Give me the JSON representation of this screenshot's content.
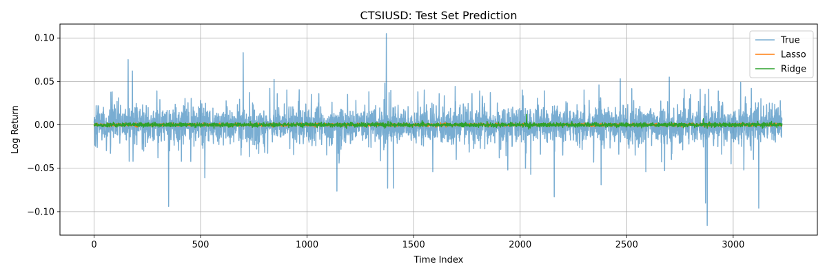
{
  "chart_data": {
    "type": "line",
    "title": "CTSIUSD: Test Set Prediction",
    "xlabel": "Time Index",
    "ylabel": "Log Return",
    "xlim": [
      -160,
      3395
    ],
    "ylim": [
      -0.127,
      0.116
    ],
    "xticks": [
      0,
      500,
      1000,
      1500,
      2000,
      2500,
      3000
    ],
    "xtick_labels": [
      "0",
      "500",
      "1000",
      "1500",
      "2000",
      "2500",
      "3000"
    ],
    "yticks": [
      -0.1,
      -0.05,
      0.0,
      0.05,
      0.1
    ],
    "ytick_labels": [
      "−0.10",
      "−0.05",
      "0.00",
      "0.05",
      "0.10"
    ],
    "grid": true,
    "legend_position": "top-right",
    "n_points": 3230,
    "series": [
      {
        "name": "True",
        "color": "#1f77b4",
        "opacity": 0.6,
        "noise_scale": 0.011,
        "spikes": [
          [
            10,
            0.022
          ],
          [
            15,
            -0.026
          ],
          [
            85,
            0.038
          ],
          [
            160,
            0.075
          ],
          [
            165,
            -0.042
          ],
          [
            180,
            0.062
          ],
          [
            183,
            -0.042
          ],
          [
            295,
            0.039
          ],
          [
            300,
            -0.038
          ],
          [
            350,
            -0.094
          ],
          [
            355,
            -0.03
          ],
          [
            410,
            -0.042
          ],
          [
            420,
            0.022
          ],
          [
            500,
            0.028
          ],
          [
            520,
            -0.061
          ],
          [
            690,
            -0.035
          ],
          [
            700,
            0.083
          ],
          [
            730,
            0.037
          ],
          [
            825,
            0.042
          ],
          [
            860,
            0.036
          ],
          [
            905,
            0.04
          ],
          [
            1020,
            0.035
          ],
          [
            1055,
            0.036
          ],
          [
            1150,
            -0.044
          ],
          [
            1190,
            0.035
          ],
          [
            1290,
            0.038
          ],
          [
            1365,
            0.048
          ],
          [
            1372,
            0.105
          ],
          [
            1378,
            -0.073
          ],
          [
            1385,
            0.037
          ],
          [
            1405,
            -0.073
          ],
          [
            1520,
            0.038
          ],
          [
            1550,
            0.04
          ],
          [
            1590,
            -0.054
          ],
          [
            1620,
            0.036
          ],
          [
            1700,
            -0.04
          ],
          [
            1810,
            0.039
          ],
          [
            1860,
            0.037
          ],
          [
            2010,
            0.04
          ],
          [
            2025,
            -0.05
          ],
          [
            2050,
            -0.057
          ],
          [
            2160,
            -0.083
          ],
          [
            2200,
            -0.035
          ],
          [
            2300,
            0.04
          ],
          [
            2345,
            -0.043
          ],
          [
            2370,
            0.046
          ],
          [
            2380,
            -0.069
          ],
          [
            2470,
            0.053
          ],
          [
            2540,
            -0.035
          ],
          [
            2590,
            -0.054
          ],
          [
            2700,
            0.055
          ],
          [
            2710,
            -0.04
          ],
          [
            2770,
            0.041
          ],
          [
            2845,
            0.041
          ],
          [
            2870,
            -0.09
          ],
          [
            2878,
            -0.116
          ],
          [
            2885,
            0.041
          ],
          [
            2930,
            0.039
          ],
          [
            2990,
            -0.045
          ],
          [
            3035,
            0.049
          ],
          [
            3050,
            -0.052
          ],
          [
            3085,
            0.042
          ],
          [
            3095,
            -0.04
          ],
          [
            3120,
            -0.096
          ],
          [
            3130,
            0.03
          ],
          [
            3170,
            0.025
          ],
          [
            3225,
            -0.013
          ]
        ]
      },
      {
        "name": "Lasso",
        "color": "#ff7f0e",
        "opacity": 1.0,
        "noise_scale": 0.0008,
        "spikes": []
      },
      {
        "name": "Ridge",
        "color": "#2ca02c",
        "opacity": 1.0,
        "noise_scale": 0.0012,
        "spikes": [
          [
            1365,
            -0.004
          ],
          [
            1380,
            0.004
          ],
          [
            2030,
            0.012
          ],
          [
            2040,
            -0.005
          ],
          [
            2200,
            -0.003
          ],
          [
            2860,
            0.007
          ],
          [
            2878,
            -0.004
          ],
          [
            3115,
            0.004
          ],
          [
            3180,
            0.004
          ]
        ]
      }
    ]
  }
}
